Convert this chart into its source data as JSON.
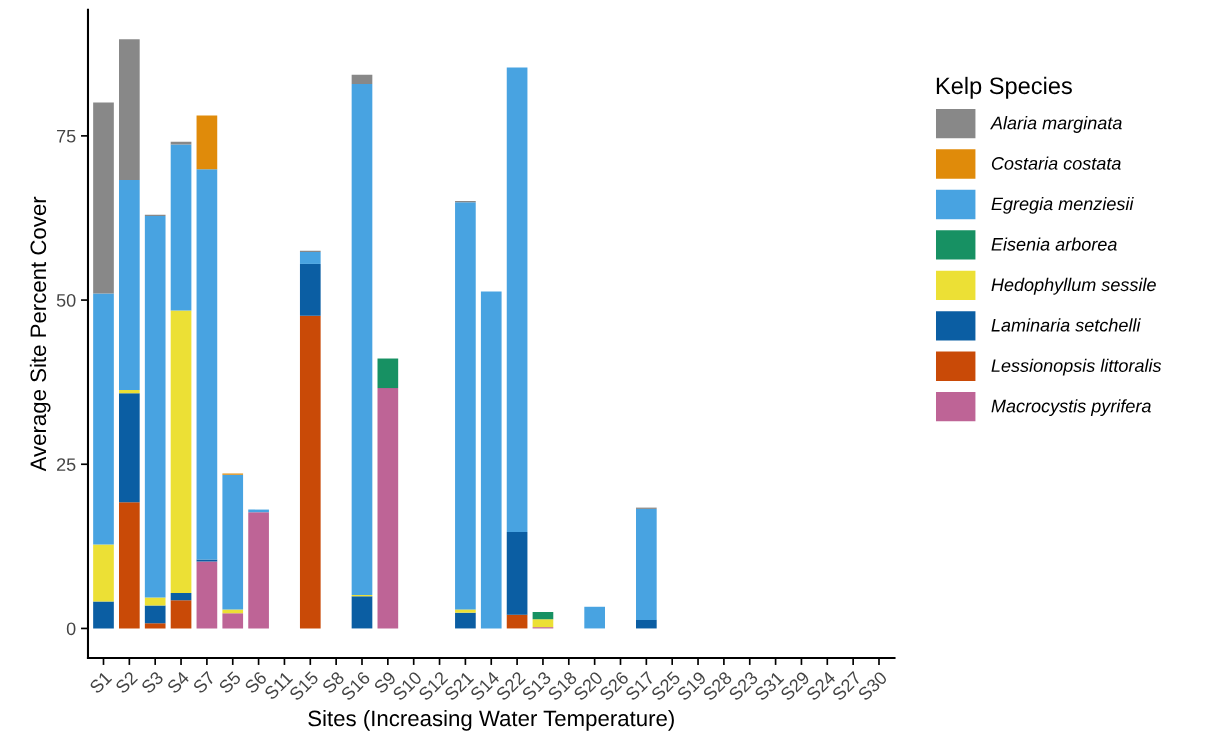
{
  "chart_data": {
    "type": "bar",
    "stacked": true,
    "xlabel": "Sites (Increasing Water Temperature)",
    "ylabel": "Average Site Percent Cover",
    "legend_title": "Kelp Species",
    "legend": "right",
    "grid": false,
    "categories": [
      "S1",
      "S2",
      "S3",
      "S4",
      "S7",
      "S5",
      "S6",
      "S11",
      "S15",
      "S8",
      "S16",
      "S9",
      "S10",
      "S12",
      "S21",
      "S14",
      "S22",
      "S13",
      "S18",
      "S20",
      "S26",
      "S17",
      "S25",
      "S19",
      "S28",
      "S23",
      "S31",
      "S29",
      "S24",
      "S27",
      "S30"
    ],
    "ylim": [
      -4.5,
      94.2
    ],
    "yticks": [
      0,
      25,
      50,
      75
    ],
    "series": [
      {
        "name": "Macrocystis pyrifera",
        "color": "#be6496",
        "values": [
          0,
          0,
          0,
          0,
          10.2,
          2.3,
          17.7,
          0,
          0,
          0,
          0,
          36.6,
          0,
          0,
          0,
          0,
          0,
          0.2,
          0,
          0,
          0,
          0,
          0,
          0,
          0,
          0,
          0,
          0,
          0,
          0,
          0
        ]
      },
      {
        "name": "Lessionopsis littoralis",
        "color": "#c94a07",
        "values": [
          0,
          19.2,
          0.8,
          4.3,
          0,
          0,
          0,
          0,
          47.6,
          0,
          0,
          0,
          0,
          0,
          0,
          0,
          2.1,
          0,
          0,
          0,
          0,
          0,
          0,
          0,
          0,
          0,
          0,
          0,
          0,
          0,
          0
        ]
      },
      {
        "name": "Laminaria setchelli",
        "color": "#0b5ea3",
        "values": [
          4.1,
          16.6,
          2.7,
          1.1,
          0.3,
          0,
          0,
          0,
          7.9,
          0,
          4.9,
          0,
          0,
          0,
          2.4,
          0,
          12.6,
          0,
          0,
          0,
          0,
          1.3,
          0,
          0,
          0,
          0,
          0,
          0,
          0,
          0,
          0
        ]
      },
      {
        "name": "Hedophyllum sessile",
        "color": "#ece035",
        "values": [
          8.7,
          0.5,
          1.2,
          43.0,
          0,
          0.6,
          0,
          0,
          0,
          0,
          0.2,
          0,
          0,
          0,
          0.5,
          0,
          0,
          1.2,
          0,
          0,
          0,
          0,
          0,
          0,
          0,
          0,
          0,
          0,
          0,
          0,
          0
        ]
      },
      {
        "name": "Eisenia arborea",
        "color": "#179163",
        "values": [
          0,
          0,
          0,
          0,
          0,
          0,
          0,
          0,
          0,
          0,
          0,
          4.5,
          0,
          0,
          0,
          0,
          0,
          1.1,
          0,
          0,
          0,
          0,
          0,
          0,
          0,
          0,
          0,
          0,
          0,
          0,
          0
        ]
      },
      {
        "name": "Egregia menziesii",
        "color": "#48a3e1",
        "values": [
          38.2,
          32.0,
          58.1,
          25.3,
          59.4,
          20.5,
          0.4,
          0,
          1.8,
          0,
          77.8,
          0,
          0,
          0,
          62.0,
          51.3,
          70.7,
          0,
          0,
          3.3,
          0,
          16.9,
          0,
          0,
          0,
          0,
          0,
          0,
          0,
          0,
          0
        ]
      },
      {
        "name": "Costaria costata",
        "color": "#e08b0a",
        "values": [
          0,
          0,
          0,
          0,
          8.2,
          0.2,
          0,
          0,
          0,
          0,
          0,
          0,
          0,
          0,
          0,
          0,
          0,
          0,
          0,
          0,
          0,
          0,
          0,
          0,
          0,
          0,
          0,
          0,
          0,
          0,
          0
        ]
      },
      {
        "name": "Alaria marginata",
        "color": "#888888",
        "values": [
          29.1,
          21.4,
          0.2,
          0.4,
          0,
          0,
          0,
          0,
          0.2,
          0,
          1.4,
          0,
          0,
          0,
          0.2,
          0,
          0,
          0,
          0,
          0,
          0,
          0.2,
          0,
          0,
          0,
          0,
          0,
          0,
          0,
          0,
          0
        ]
      }
    ]
  }
}
